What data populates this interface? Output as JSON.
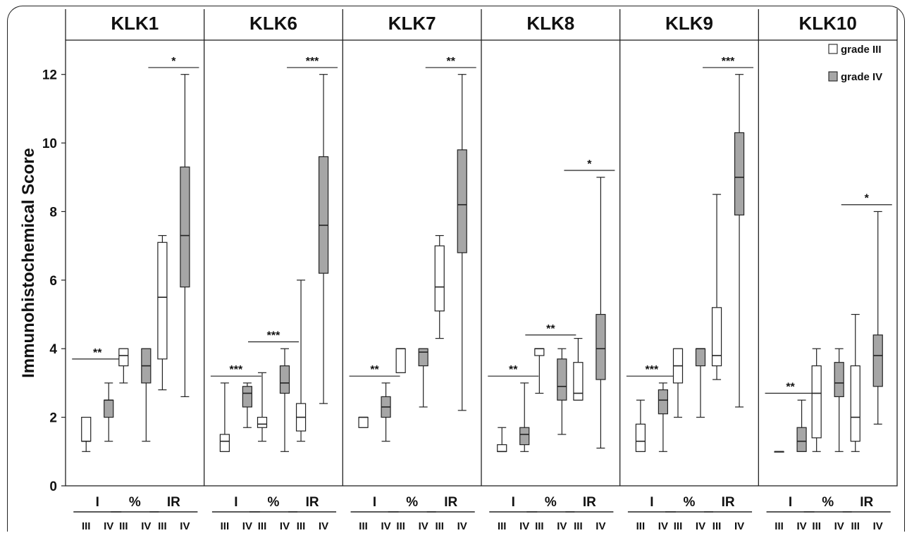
{
  "chart_data": {
    "type": "boxplot",
    "ylabel": "Immunohistochemical Score",
    "ylim": [
      0,
      13
    ],
    "yticks": [
      0,
      2,
      4,
      6,
      8,
      10,
      12
    ],
    "group_labels": [
      "I",
      "%",
      "IR"
    ],
    "grade_labels": [
      "III",
      "IV"
    ],
    "legend": [
      {
        "name": "grade III",
        "color": "#ffffff"
      },
      {
        "name": "grade IV",
        "color": "#a6a6a6"
      }
    ],
    "panels": [
      {
        "title": "KLK1",
        "groups": [
          {
            "label": "I",
            "sig": "**",
            "sig_y": 3.7,
            "III": {
              "min": 1.0,
              "q1": 1.3,
              "median": 1.3,
              "q3": 2.0,
              "max": 2.0
            },
            "IV": {
              "min": 1.3,
              "q1": 2.0,
              "median": 2.5,
              "q3": 2.5,
              "max": 3.0
            }
          },
          {
            "label": "%",
            "sig": "",
            "sig_y": null,
            "III": {
              "min": 3.0,
              "q1": 3.5,
              "median": 3.8,
              "q3": 4.0,
              "max": 4.0
            },
            "IV": {
              "min": 1.3,
              "q1": 3.0,
              "median": 3.5,
              "q3": 4.0,
              "max": 4.0
            }
          },
          {
            "label": "IR",
            "sig": "*",
            "sig_y": 12.2,
            "III": {
              "min": 2.8,
              "q1": 3.7,
              "median": 5.5,
              "q3": 7.1,
              "max": 7.3
            },
            "IV": {
              "min": 2.6,
              "q1": 5.8,
              "median": 7.3,
              "q3": 9.3,
              "max": 12.0
            }
          }
        ]
      },
      {
        "title": "KLK6",
        "groups": [
          {
            "label": "I",
            "sig": "***",
            "sig_y": 3.2,
            "III": {
              "min": 1.0,
              "q1": 1.0,
              "median": 1.3,
              "q3": 1.5,
              "max": 3.0
            },
            "IV": {
              "min": 1.7,
              "q1": 2.3,
              "median": 2.7,
              "q3": 2.9,
              "max": 3.0
            }
          },
          {
            "label": "%",
            "sig": "***",
            "sig_y": 4.2,
            "III": {
              "min": 1.3,
              "q1": 1.7,
              "median": 1.8,
              "q3": 2.0,
              "max": 3.3
            },
            "IV": {
              "min": 1.0,
              "q1": 2.7,
              "median": 3.0,
              "q3": 3.5,
              "max": 4.0
            }
          },
          {
            "label": "IR",
            "sig": "***",
            "sig_y": 12.2,
            "III": {
              "min": 1.3,
              "q1": 1.6,
              "median": 2.0,
              "q3": 2.4,
              "max": 6.0
            },
            "IV": {
              "min": 2.4,
              "q1": 6.2,
              "median": 7.6,
              "q3": 9.6,
              "max": 12.0
            }
          }
        ]
      },
      {
        "title": "KLK7",
        "groups": [
          {
            "label": "I",
            "sig": "**",
            "sig_y": 3.2,
            "III": {
              "min": 1.7,
              "q1": 1.7,
              "median": 2.0,
              "q3": 2.0,
              "max": 2.0
            },
            "IV": {
              "min": 1.3,
              "q1": 2.0,
              "median": 2.3,
              "q3": 2.6,
              "max": 3.0
            }
          },
          {
            "label": "%",
            "sig": "",
            "sig_y": null,
            "III": {
              "min": 3.3,
              "q1": 3.3,
              "median": 4.0,
              "q3": 4.0,
              "max": 4.0
            },
            "IV": {
              "min": 2.3,
              "q1": 3.5,
              "median": 3.9,
              "q3": 4.0,
              "max": 4.0
            }
          },
          {
            "label": "IR",
            "sig": "**",
            "sig_y": 12.2,
            "III": {
              "min": 4.3,
              "q1": 5.1,
              "median": 5.8,
              "q3": 7.0,
              "max": 7.3
            },
            "IV": {
              "min": 2.2,
              "q1": 6.8,
              "median": 8.2,
              "q3": 9.8,
              "max": 12.0
            }
          }
        ]
      },
      {
        "title": "KLK8",
        "groups": [
          {
            "label": "I",
            "sig": "**",
            "sig_y": 3.2,
            "III": {
              "min": 1.0,
              "q1": 1.0,
              "median": 1.0,
              "q3": 1.2,
              "max": 1.7
            },
            "IV": {
              "min": 1.0,
              "q1": 1.2,
              "median": 1.5,
              "q3": 1.7,
              "max": 3.0
            }
          },
          {
            "label": "%",
            "sig": "**",
            "sig_y": 4.4,
            "III": {
              "min": 2.7,
              "q1": 3.8,
              "median": 4.0,
              "q3": 4.0,
              "max": 4.0
            },
            "IV": {
              "min": 1.5,
              "q1": 2.5,
              "median": 2.9,
              "q3": 3.7,
              "max": 4.0
            }
          },
          {
            "label": "IR",
            "sig": "*",
            "sig_y": 9.2,
            "III": {
              "min": 2.5,
              "q1": 2.5,
              "median": 2.7,
              "q3": 3.6,
              "max": 4.3
            },
            "IV": {
              "min": 1.1,
              "q1": 3.1,
              "median": 4.0,
              "q3": 5.0,
              "max": 9.0
            }
          }
        ]
      },
      {
        "title": "KLK9",
        "groups": [
          {
            "label": "I",
            "sig": "***",
            "sig_y": 3.2,
            "III": {
              "min": 1.0,
              "q1": 1.0,
              "median": 1.3,
              "q3": 1.8,
              "max": 2.5
            },
            "IV": {
              "min": 1.0,
              "q1": 2.1,
              "median": 2.5,
              "q3": 2.8,
              "max": 3.0
            }
          },
          {
            "label": "%",
            "sig": "",
            "sig_y": null,
            "III": {
              "min": 2.0,
              "q1": 3.0,
              "median": 3.5,
              "q3": 4.0,
              "max": 4.0
            },
            "IV": {
              "min": 2.0,
              "q1": 3.5,
              "median": 4.0,
              "q3": 4.0,
              "max": 4.0
            }
          },
          {
            "label": "IR",
            "sig": "***",
            "sig_y": 12.2,
            "III": {
              "min": 3.1,
              "q1": 3.5,
              "median": 3.8,
              "q3": 5.2,
              "max": 8.5
            },
            "IV": {
              "min": 2.3,
              "q1": 7.9,
              "median": 9.0,
              "q3": 10.3,
              "max": 12.0
            }
          }
        ]
      },
      {
        "title": "KLK10",
        "groups": [
          {
            "label": "I",
            "sig": "**",
            "sig_y": 2.7,
            "III": {
              "min": 1.0,
              "q1": 1.0,
              "median": 1.0,
              "q3": 1.0,
              "max": 1.0
            },
            "IV": {
              "min": 1.0,
              "q1": 1.0,
              "median": 1.3,
              "q3": 1.7,
              "max": 2.5
            }
          },
          {
            "label": "%",
            "sig": "",
            "sig_y": null,
            "III": {
              "min": 1.0,
              "q1": 1.4,
              "median": 2.7,
              "q3": 3.5,
              "max": 4.0
            },
            "IV": {
              "min": 1.0,
              "q1": 2.6,
              "median": 3.0,
              "q3": 3.6,
              "max": 4.0
            }
          },
          {
            "label": "IR",
            "sig": "*",
            "sig_y": 8.2,
            "III": {
              "min": 1.0,
              "q1": 1.3,
              "median": 2.0,
              "q3": 3.5,
              "max": 5.0
            },
            "IV": {
              "min": 1.8,
              "q1": 2.9,
              "median": 3.8,
              "q3": 4.4,
              "max": 8.0
            }
          }
        ]
      }
    ]
  }
}
